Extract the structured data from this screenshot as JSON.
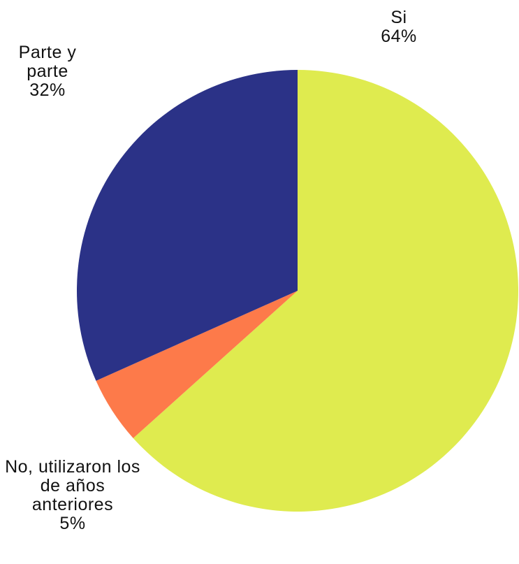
{
  "chart_data": {
    "type": "pie",
    "categories": [
      "Si",
      "No, utilizaron los de años anteriores",
      "Parte y parte"
    ],
    "values": [
      64,
      5,
      32
    ],
    "value_labels": [
      "64%",
      "5%",
      "32%"
    ],
    "colors": [
      "#dfeb4f",
      "#fd7a4a",
      "#2b3287"
    ]
  }
}
